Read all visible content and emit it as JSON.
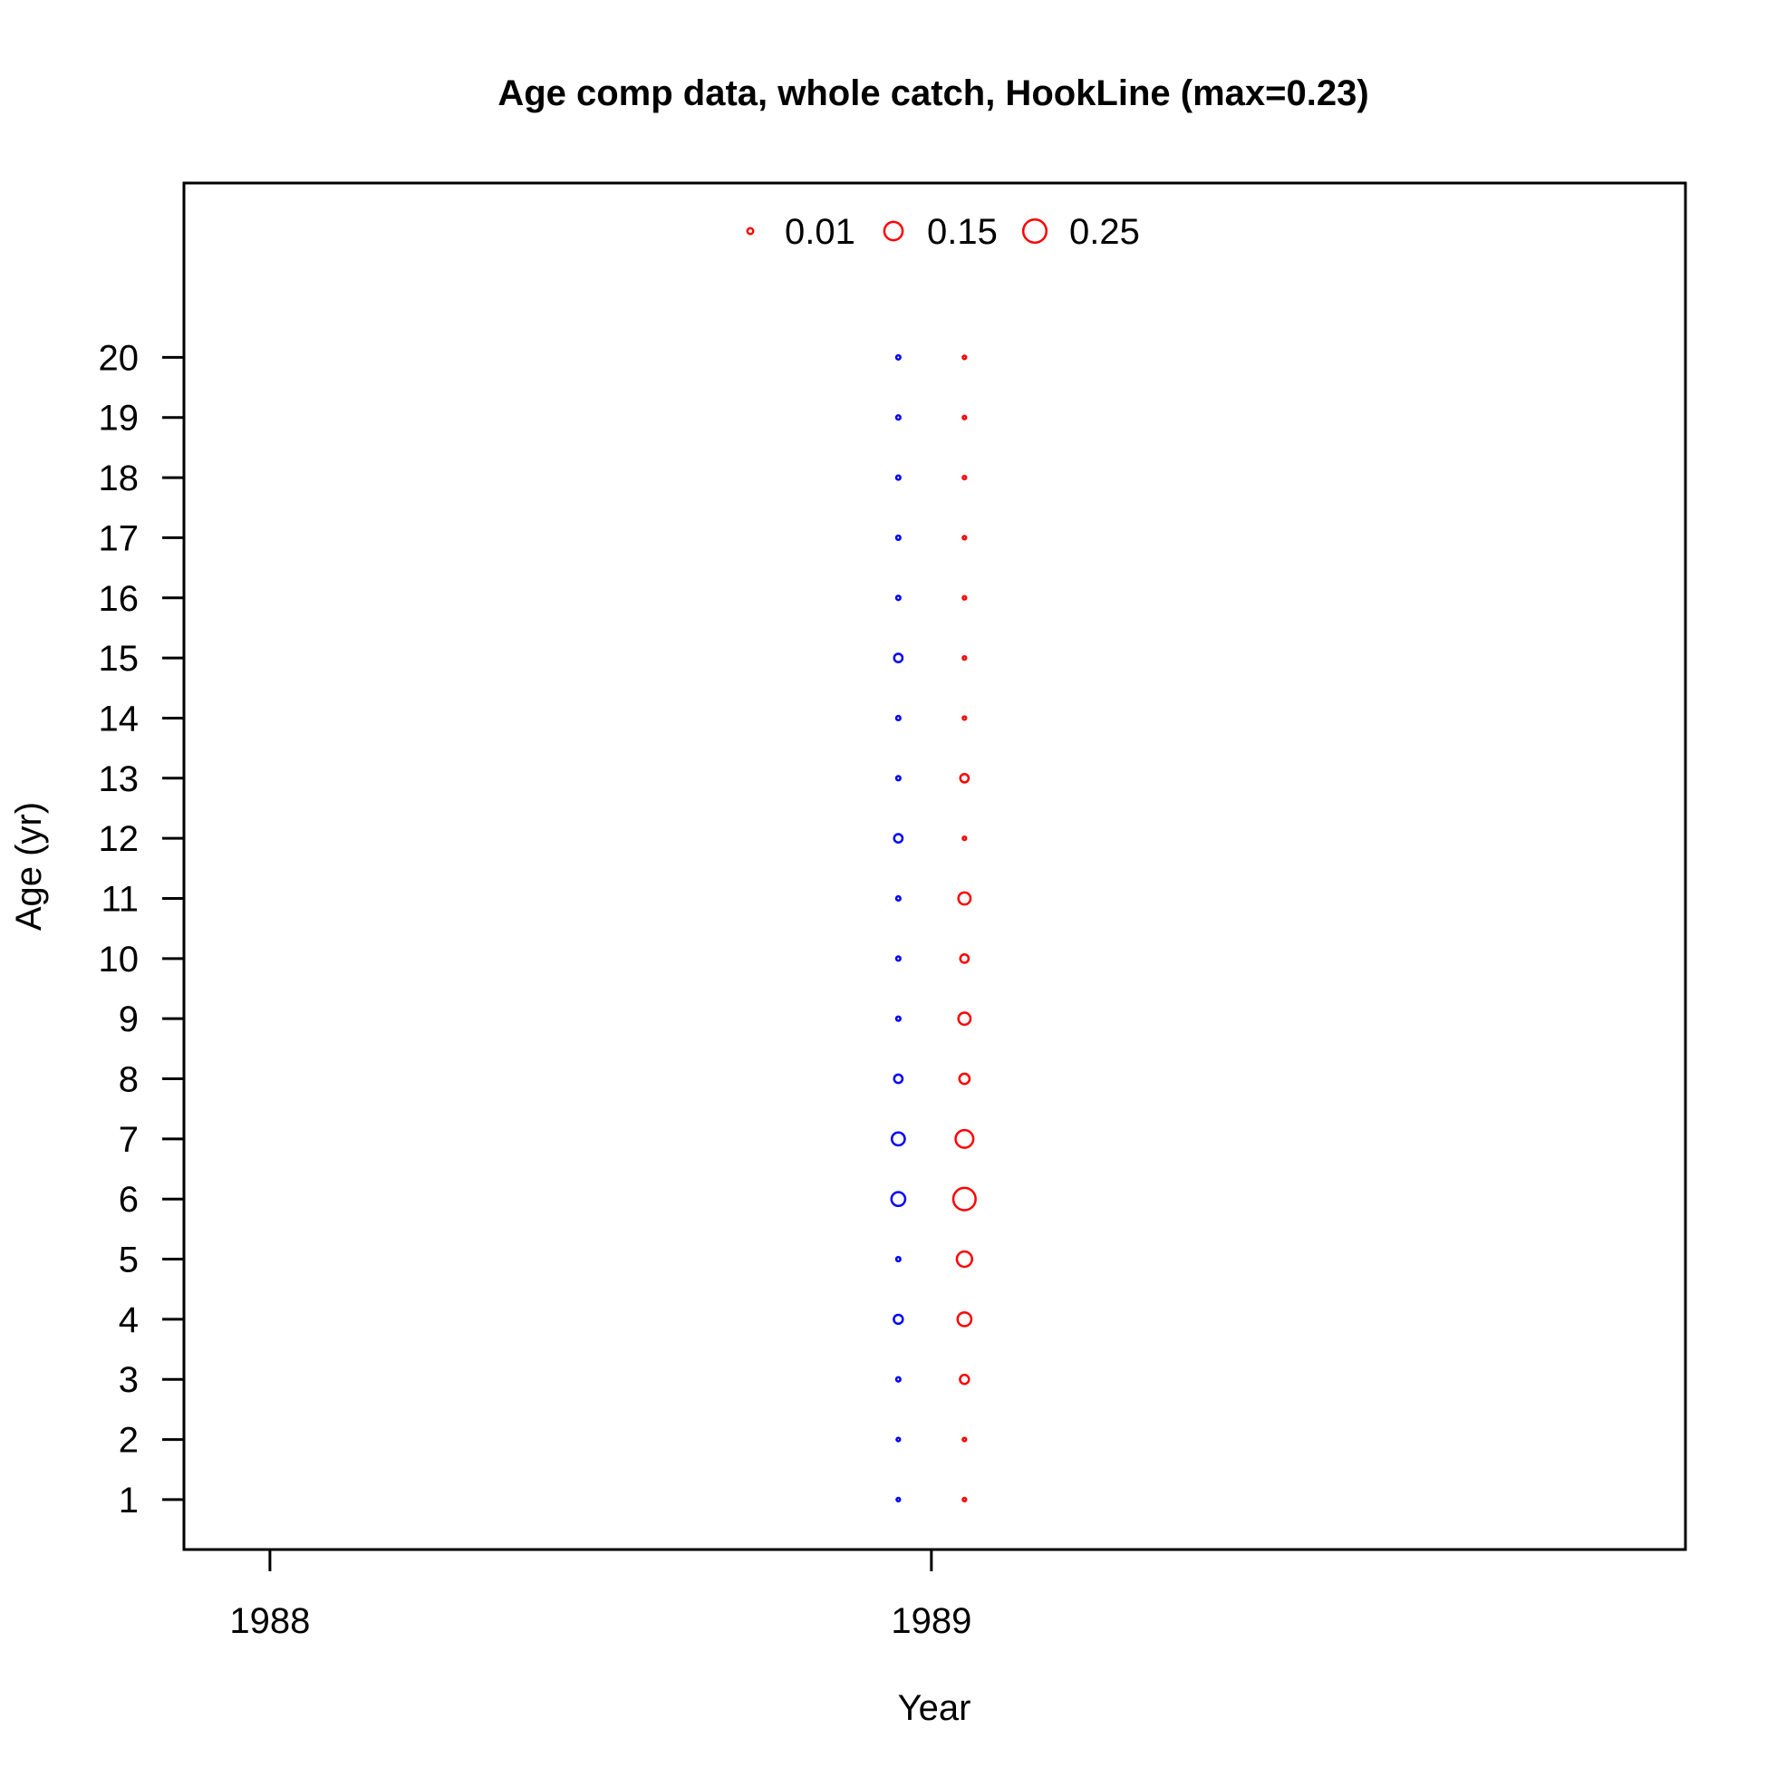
{
  "chart_data": {
    "type": "scatter",
    "title": "Age comp data, whole catch, HookLine (max=0.23)",
    "xlabel": "Year",
    "ylabel": "Age (yr)",
    "xlim": [
      1987.87,
      1990.14
    ],
    "ylim": [
      0.17,
      22.9
    ],
    "x_ticks": [
      "1988",
      "1989"
    ],
    "y_ticks": [
      "1",
      "2",
      "3",
      "4",
      "5",
      "6",
      "7",
      "8",
      "9",
      "10",
      "11",
      "12",
      "13",
      "14",
      "15",
      "16",
      "17",
      "18",
      "19",
      "20"
    ],
    "legend": {
      "placement": "top-center",
      "entries": [
        {
          "label": "0.01",
          "value": 0.01
        },
        {
          "label": "0.15",
          "value": 0.15
        },
        {
          "label": "0.25",
          "value": 0.25
        }
      ]
    },
    "series": [
      {
        "color": "#0000ff",
        "x": 1988.95,
        "ages": [
          1,
          2,
          3,
          4,
          5,
          6,
          7,
          8,
          9,
          10,
          11,
          12,
          13,
          14,
          15,
          16,
          17,
          18,
          19,
          20
        ],
        "values": [
          0.002,
          0.002,
          0.004,
          0.03,
          0.004,
          0.08,
          0.07,
          0.025,
          0.004,
          0.004,
          0.004,
          0.025,
          0.004,
          0.004,
          0.025,
          0.004,
          0.004,
          0.004,
          0.004,
          0.004
        ]
      },
      {
        "color": "#ff0000",
        "x": 1989.05,
        "ages": [
          1,
          2,
          3,
          4,
          5,
          6,
          7,
          8,
          9,
          10,
          11,
          12,
          13,
          14,
          15,
          16,
          17,
          18,
          19,
          20
        ],
        "values": [
          0.002,
          0.002,
          0.03,
          0.08,
          0.1,
          0.23,
          0.14,
          0.04,
          0.06,
          0.025,
          0.06,
          0.002,
          0.025,
          0.002,
          0.002,
          0.002,
          0.002,
          0.002,
          0.002,
          0.002
        ]
      }
    ],
    "colors": {
      "positive": "#ff0000",
      "secondary": "#0000ff"
    }
  }
}
